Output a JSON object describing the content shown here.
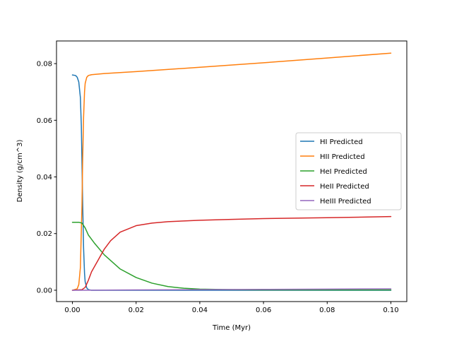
{
  "chart_data": {
    "type": "line",
    "title": "",
    "xlabel": "Time (Myr)",
    "ylabel": "Density (g/cm^3)",
    "xlim": [
      -0.005,
      0.105
    ],
    "ylim": [
      -0.004,
      0.088
    ],
    "xticks": [
      0.0,
      0.02,
      0.04,
      0.06,
      0.08,
      0.1
    ],
    "xtick_labels": [
      "0.00",
      "0.02",
      "0.04",
      "0.06",
      "0.08",
      "0.10"
    ],
    "yticks": [
      0.0,
      0.02,
      0.04,
      0.06,
      0.08
    ],
    "ytick_labels": [
      "0.00",
      "0.02",
      "0.04",
      "0.06",
      "0.08"
    ],
    "grid": false,
    "legend_position": "center-right",
    "series": [
      {
        "name": "HI Predicted",
        "color": "#1f77b4",
        "x": [
          0.0,
          0.001,
          0.0015,
          0.002,
          0.0025,
          0.0028,
          0.003,
          0.0032,
          0.0035,
          0.0038,
          0.004,
          0.0045,
          0.005,
          0.006,
          0.01,
          0.02,
          0.05,
          0.1
        ],
        "y": [
          0.076,
          0.0758,
          0.0752,
          0.0735,
          0.068,
          0.058,
          0.045,
          0.032,
          0.015,
          0.006,
          0.003,
          0.0008,
          0.0002,
          0.0,
          0.0,
          0.0,
          0.0,
          0.0
        ]
      },
      {
        "name": "HII Predicted",
        "color": "#ff7f0e",
        "x": [
          0.0,
          0.0015,
          0.002,
          0.0025,
          0.003,
          0.0032,
          0.0035,
          0.0038,
          0.004,
          0.0045,
          0.005,
          0.006,
          0.01,
          0.02,
          0.04,
          0.06,
          0.08,
          0.1
        ],
        "y": [
          0.0,
          0.0005,
          0.002,
          0.008,
          0.03,
          0.045,
          0.061,
          0.07,
          0.073,
          0.0752,
          0.0758,
          0.0761,
          0.0765,
          0.0772,
          0.0787,
          0.0803,
          0.082,
          0.0837
        ]
      },
      {
        "name": "HeI Predicted",
        "color": "#2ca02c",
        "x": [
          0.0,
          0.002,
          0.003,
          0.004,
          0.005,
          0.007,
          0.01,
          0.015,
          0.02,
          0.025,
          0.03,
          0.035,
          0.04,
          0.05,
          0.06,
          0.08,
          0.1
        ],
        "y": [
          0.024,
          0.024,
          0.0237,
          0.022,
          0.0195,
          0.0165,
          0.0125,
          0.0075,
          0.0045,
          0.0025,
          0.0013,
          0.0007,
          0.0004,
          0.0002,
          0.0001,
          0.0001,
          0.0001
        ]
      },
      {
        "name": "HeII Predicted",
        "color": "#d62728",
        "x": [
          0.0,
          0.003,
          0.004,
          0.005,
          0.006,
          0.008,
          0.01,
          0.012,
          0.015,
          0.02,
          0.025,
          0.03,
          0.04,
          0.05,
          0.06,
          0.08,
          0.1
        ],
        "y": [
          0.0,
          0.0002,
          0.001,
          0.0035,
          0.0065,
          0.0105,
          0.0145,
          0.0175,
          0.0205,
          0.0228,
          0.0237,
          0.0242,
          0.0247,
          0.025,
          0.0253,
          0.0256,
          0.026
        ]
      },
      {
        "name": "HeIII Predicted",
        "color": "#9467bd",
        "x": [
          0.0,
          0.02,
          0.04,
          0.06,
          0.08,
          0.1
        ],
        "y": [
          0.0,
          0.0001,
          0.0002,
          0.0003,
          0.0004,
          0.0005
        ]
      }
    ]
  }
}
